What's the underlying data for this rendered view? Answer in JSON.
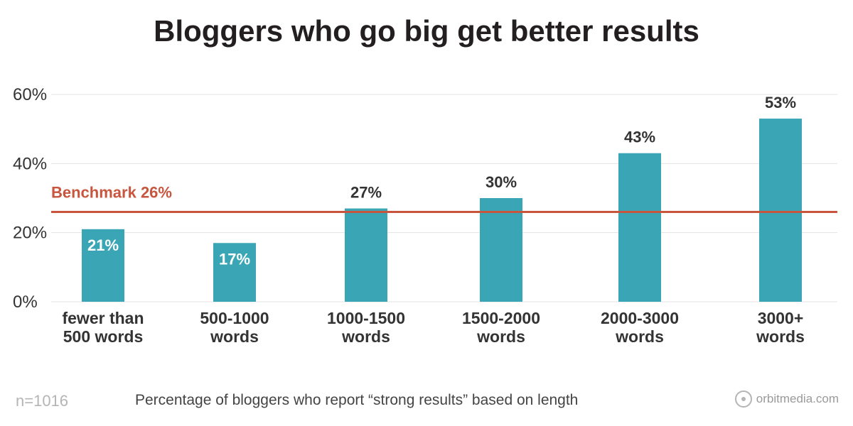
{
  "chart_data": {
    "type": "bar",
    "title": "Bloggers who go big get better results",
    "categories": [
      [
        "fewer than",
        "500 words"
      ],
      [
        "500-1000",
        "words"
      ],
      [
        "1000-1500",
        "words"
      ],
      [
        "1500-2000",
        "words"
      ],
      [
        "2000-3000",
        "words"
      ],
      [
        "3000+",
        "words"
      ]
    ],
    "values": [
      21,
      17,
      27,
      30,
      43,
      53
    ],
    "value_labels": [
      "21%",
      "17%",
      "27%",
      "30%",
      "43%",
      "53%"
    ],
    "ylim": [
      0,
      60
    ],
    "yticks": [
      0,
      20,
      40,
      60
    ],
    "ytick_labels": [
      "0%",
      "20%",
      "40%",
      "60%"
    ],
    "grid": true,
    "benchmark": {
      "value": 26,
      "label": "Benchmark 26%"
    },
    "colors": {
      "bar": "#3aa6b5",
      "benchmark": "#c8553d",
      "grid": "#e3e3e3",
      "label_inside": "#ffffff",
      "label_outside": "#333333"
    }
  },
  "footer": {
    "sample_size": "n=1016",
    "caption": "Percentage of bloggers who report “strong results” based on length",
    "brand": "orbitmedia.com",
    "brand_icon": "orbit-icon"
  }
}
